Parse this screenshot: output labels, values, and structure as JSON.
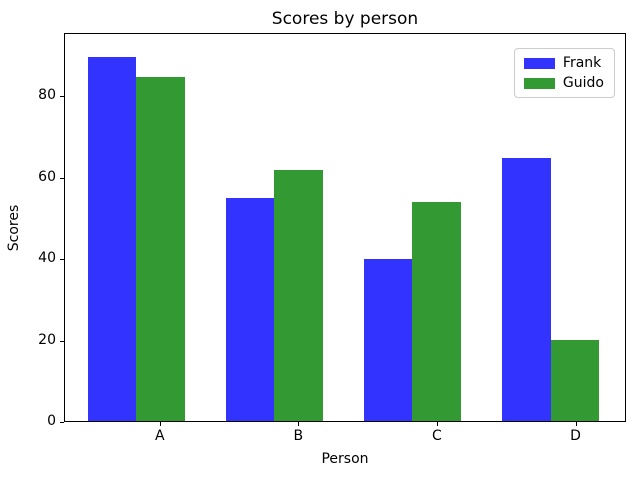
{
  "title": "Scores by person",
  "chart_data": {
    "type": "bar",
    "categories": [
      "A",
      "B",
      "C",
      "D"
    ],
    "series": [
      {
        "name": "Frank",
        "color": "#3333ff",
        "values": [
          90,
          55,
          40,
          65
        ]
      },
      {
        "name": "Guido",
        "color": "#339933",
        "values": [
          85,
          62,
          54,
          20
        ]
      }
    ],
    "title": "Scores by person",
    "xlabel": "Person",
    "ylabel": "Scores",
    "ylim": [
      0,
      95.6
    ],
    "yticks": [
      0,
      20,
      40,
      60,
      80
    ],
    "legend_position": "upper right",
    "grid": false
  }
}
